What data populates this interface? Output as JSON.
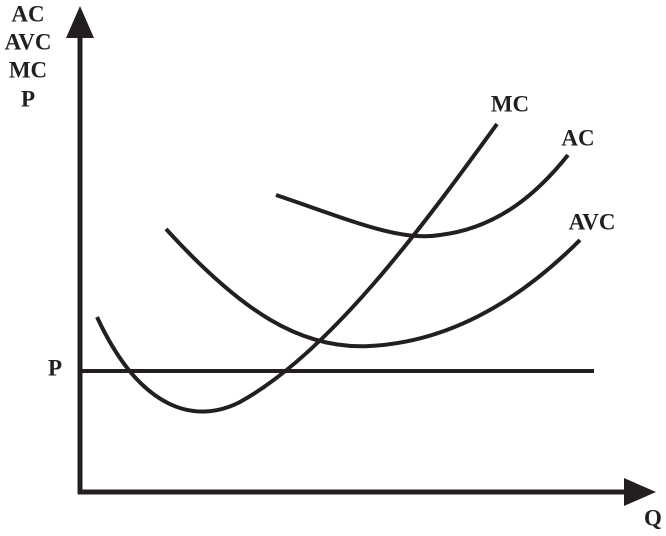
{
  "y_axis": {
    "labels": [
      "AC",
      "AVC",
      "MC",
      "P"
    ]
  },
  "x_axis": {
    "label": "Q"
  },
  "price_label": "P",
  "curves": [
    {
      "label": "MC"
    },
    {
      "label": "AC"
    },
    {
      "label": "AVC"
    }
  ]
}
